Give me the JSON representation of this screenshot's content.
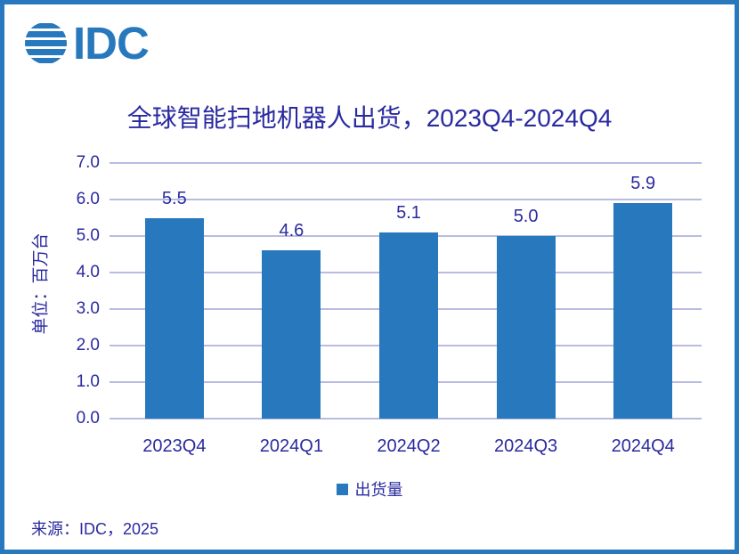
{
  "brand": {
    "logo_text": "IDC"
  },
  "colors": {
    "primary_blue": "#2878BE",
    "dark_text": "#2A2AA0",
    "gridline": "#B9BCE0",
    "frame_border": "#2878BE",
    "background": "#FFFFFF"
  },
  "chart_data": {
    "type": "bar",
    "title": "全球智能扫地机器人出货，2023Q4-2024Q4",
    "categories": [
      "2023Q4",
      "2024Q1",
      "2024Q2",
      "2024Q3",
      "2024Q4"
    ],
    "values": [
      5.5,
      4.6,
      5.1,
      5.0,
      5.9
    ],
    "value_labels": [
      "5.5",
      "4.6",
      "5.1",
      "5.0",
      "5.9"
    ],
    "xlabel": "",
    "ylabel": "单位：百万台",
    "ylim": [
      0,
      7
    ],
    "ytick_step": 1,
    "yticks": [
      "7.0",
      "6.0",
      "5.0",
      "4.0",
      "3.0",
      "2.0",
      "1.0",
      "0.0"
    ],
    "grid": true,
    "legend_position": "bottom",
    "legend": [
      {
        "label": "出货量",
        "color": "#2878BE"
      }
    ],
    "bar_color": "#2878BE"
  },
  "footer": {
    "source": "来源：IDC，2025"
  }
}
